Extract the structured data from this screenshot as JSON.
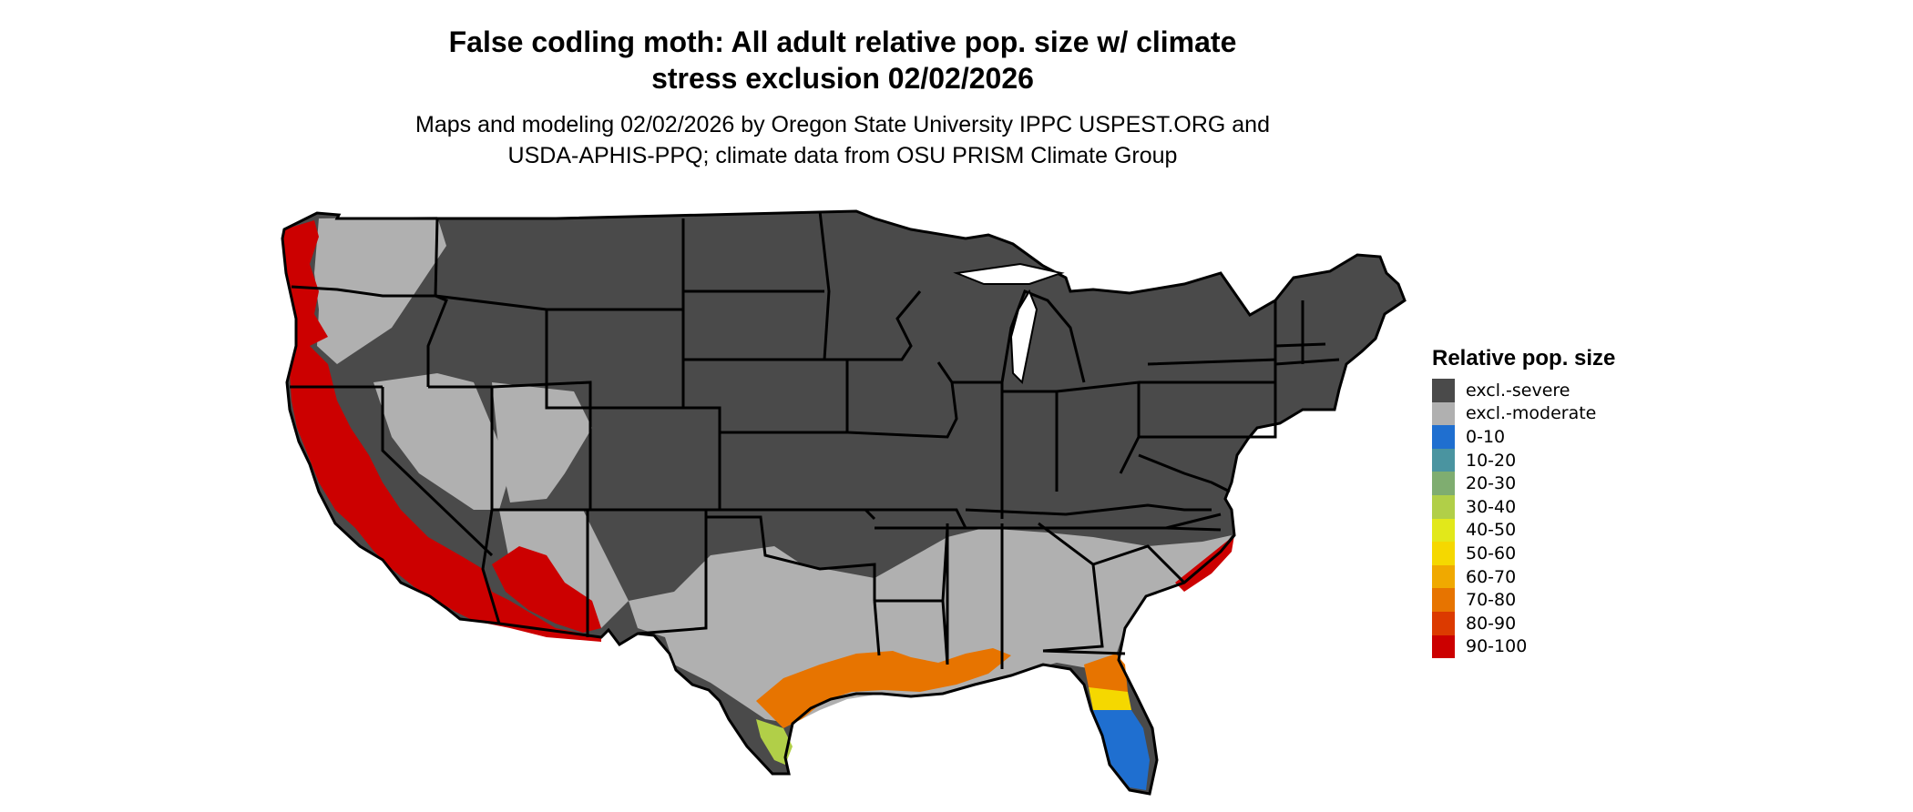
{
  "title_line1": "False codling moth: All adult relative pop. size w/ climate",
  "title_line2": "stress exclusion 02/02/2026",
  "subtitle_line1": "Maps and modeling 02/02/2026 by Oregon State University IPPC USPEST.ORG and",
  "subtitle_line2": "USDA-APHIS-PPQ; climate data from OSU PRISM Climate Group",
  "legend": {
    "title": "Relative pop. size",
    "items": [
      {
        "label": "excl.-severe",
        "color": "#4a4a4a"
      },
      {
        "label": "excl.-moderate",
        "color": "#b0b0b0"
      },
      {
        "label": "0-10",
        "color": "#1f6fd0"
      },
      {
        "label": "10-20",
        "color": "#4a94a0"
      },
      {
        "label": "20-30",
        "color": "#7fad70"
      },
      {
        "label": "30-40",
        "color": "#b1cf48"
      },
      {
        "label": "40-50",
        "color": "#e2e81a"
      },
      {
        "label": "50-60",
        "color": "#f5d800"
      },
      {
        "label": "60-70",
        "color": "#f0a900"
      },
      {
        "label": "70-80",
        "color": "#e77400"
      },
      {
        "label": "80-90",
        "color": "#dc3a00"
      },
      {
        "label": "90-100",
        "color": "#cc0000"
      }
    ]
  }
}
